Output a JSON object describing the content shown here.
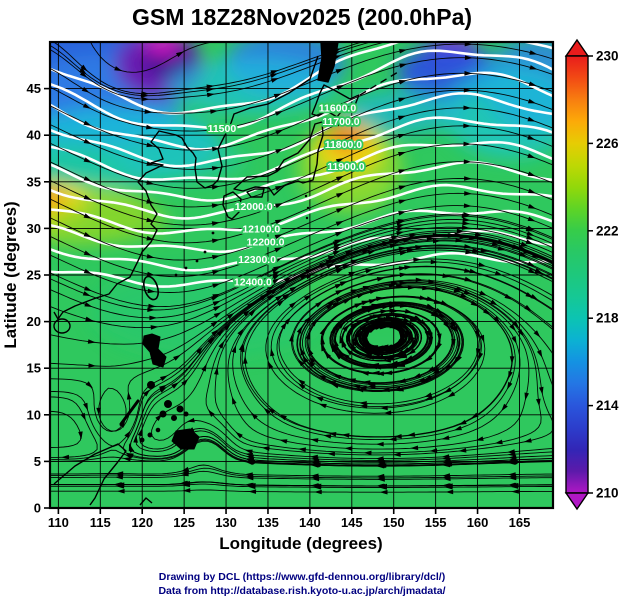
{
  "page": {
    "title": "GSM 18Z28Nov2025 (200.0hPa)",
    "footer_line1": "Drawing by DCL (https://www.gfd-dennou.org/library/dcl/)",
    "footer_line2": "Data from http://database.rish.kyoto-u.ac.jp/arch/jmadata/"
  },
  "chart_data": {
    "type": "heatmap",
    "title": "GSM 18Z28Nov2025 (200.0hPa)",
    "xlabel": "Longitude (degrees)",
    "ylabel": "Latitude (degrees)",
    "xlim": [
      109,
      169
    ],
    "ylim": [
      0,
      50
    ],
    "x_ticks": [
      110,
      115,
      120,
      125,
      130,
      135,
      140,
      145,
      150,
      155,
      160,
      165
    ],
    "y_ticks": [
      0,
      5,
      10,
      15,
      20,
      25,
      30,
      35,
      40,
      45
    ],
    "grid": true,
    "shaded_field": "temperature (K) at 200.0 hPa",
    "shading_features": [
      {
        "desc": "cold pool / purple minimum",
        "lon": 122,
        "lat": 47.5,
        "approx_K": 211
      },
      {
        "desc": "blue cold air NW corner",
        "lon": 114,
        "lat": 43,
        "approx_K": 215
      },
      {
        "desc": "cold spot on ridge crest (magenta)",
        "lon": 157,
        "lat": 49.5,
        "approx_K": 211
      },
      {
        "desc": "cold cyan band NE corner",
        "lon": 164,
        "lat": 44,
        "approx_K": 217
      },
      {
        "desc": "warm anomaly over northern Japan (orange)",
        "lon": 144.5,
        "lat": 39,
        "approx_K": 227
      },
      {
        "desc": "warm band at west edge (yellow)",
        "lon": 109.5,
        "lat": 32.5,
        "approx_K": 226
      },
      {
        "desc": "tropical background",
        "lon": 140,
        "lat": 10,
        "approx_K": 221
      }
    ],
    "colorbar": {
      "min": 210,
      "max": 230,
      "ticks": [
        210,
        214,
        218,
        222,
        226,
        230
      ],
      "colormap": [
        [
          230,
          "#e81c1c"
        ],
        [
          229,
          "#f24a14"
        ],
        [
          228,
          "#f87e10"
        ],
        [
          227,
          "#fcaa08"
        ],
        [
          226,
          "#e6cc04"
        ],
        [
          225,
          "#bed804"
        ],
        [
          224,
          "#92d80a"
        ],
        [
          223,
          "#5ed426"
        ],
        [
          222,
          "#36cc4a"
        ],
        [
          221,
          "#28c866"
        ],
        [
          220,
          "#1ec87c"
        ],
        [
          219,
          "#16c894"
        ],
        [
          218,
          "#0cc4b2"
        ],
        [
          217,
          "#0cb2d2"
        ],
        [
          216,
          "#1492e2"
        ],
        [
          215,
          "#2476e4"
        ],
        [
          214,
          "#2a56dc"
        ],
        [
          213,
          "#2c3ecc"
        ],
        [
          212,
          "#3226b6"
        ],
        [
          211,
          "#5c1aaa"
        ],
        [
          210,
          "#b018c4"
        ]
      ]
    },
    "contours": {
      "field": "geopotential height (m), white contours",
      "levels": [
        11400,
        11500,
        11600,
        11700,
        11800,
        11900,
        12000,
        12100,
        12200,
        12300,
        12400
      ],
      "base_lat_start": 47,
      "base_lat_step": 2.15,
      "amp_start": 4.5,
      "amp_step": 0.3,
      "node_lon": 142,
      "scale": 32,
      "labels": [
        {
          "text": "11500",
          "level": 11500,
          "lon": 129.5
        },
        {
          "text": "11600.0",
          "level": 11600,
          "lon": 143.3
        },
        {
          "text": "11700.0",
          "level": 11700,
          "lon": 143.7
        },
        {
          "text": "11800.0",
          "level": 11800,
          "lon": 144.0
        },
        {
          "text": "11900.0",
          "level": 11900,
          "lon": 144.3
        },
        {
          "text": "12000.0",
          "level": 12000,
          "lon": 133.3
        },
        {
          "text": "12100.0",
          "level": 12100,
          "lon": 134.2
        },
        {
          "text": "12200.0",
          "level": 12200,
          "lon": 134.7
        },
        {
          "text": "12300.0",
          "level": 12300,
          "lon": 133.7
        },
        {
          "text": "12400.0",
          "level": 12400,
          "lon": 133.2
        }
      ]
    },
    "flow": {
      "field": "wind streamlines with arrowheads",
      "base_u": 0.25,
      "jet": {
        "center_lat": 36,
        "width": 10,
        "speed": 2.6,
        "sub_lat": 27,
        "sub_width": 7,
        "sub_speed": 1.1
      },
      "wave": {
        "node_lon": 142,
        "scale": 32,
        "amp": 0.45
      },
      "anticyclone": {
        "lon": 148,
        "lat": 20,
        "radius_lon": 15,
        "radius_lat": 8.5,
        "strength": 3.2
      },
      "easterlies": {
        "center_lat": 2,
        "width": 4.5,
        "speed": 1.5
      },
      "cyclones": [
        {
          "lon": 118,
          "lat": 48,
          "radius": 5.5,
          "strength": 1.3
        },
        {
          "lon": 116.5,
          "lat": 9.5,
          "radius": 3.2,
          "strength": 0.9
        },
        {
          "lon": 127.5,
          "lat": 6,
          "radius": 3.0,
          "strength": 0.8
        }
      ]
    }
  }
}
